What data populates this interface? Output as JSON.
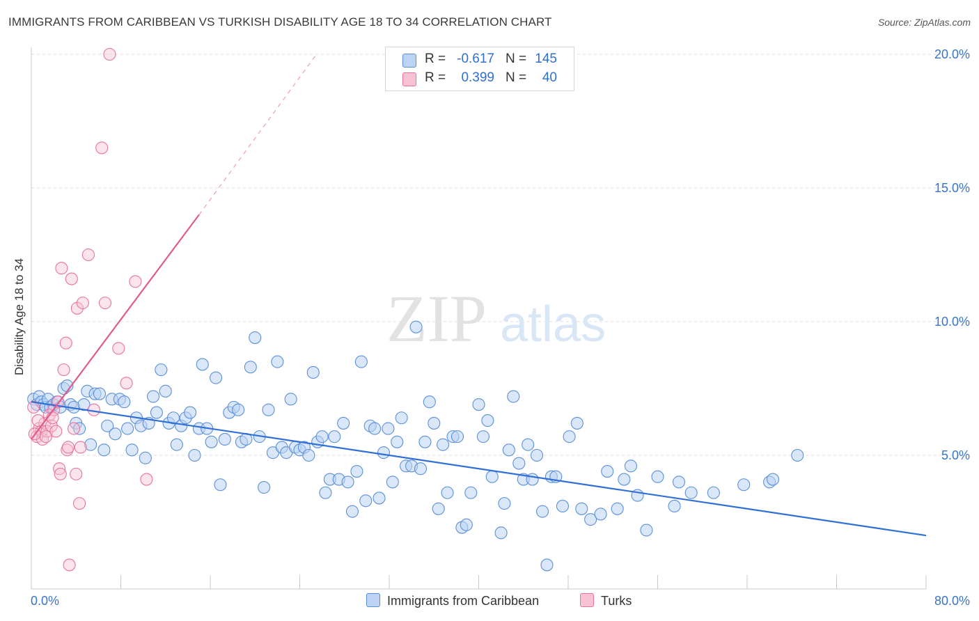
{
  "title": "IMMIGRANTS FROM CARIBBEAN VS TURKISH DISABILITY AGE 18 TO 34 CORRELATION CHART",
  "source": "Source: ZipAtlas.com",
  "watermark": "ZIPatlas",
  "colors": {
    "blue": "#5b8fd9",
    "blue_fill": "#bcd3f3",
    "blue_line": "#2f6fd6",
    "pink": "#e7749a",
    "pink_fill": "#f7c3d4",
    "pink_line": "#e05a8a",
    "axis_label": "#3b73c8",
    "grid": "#dedede"
  },
  "legend": {
    "rows": [
      {
        "r_label": "R =",
        "r_value": "-0.617",
        "n_label": "N =",
        "n_value": "145"
      },
      {
        "r_label": "R =",
        "r_value": "0.399",
        "n_label": "N =",
        "n_value": "40"
      }
    ]
  },
  "bottom_legend": {
    "blue": "Immigrants from Caribbean",
    "pink": "Turks"
  },
  "chart_data": {
    "type": "scatter",
    "xlabel": "",
    "ylabel": "Disability Age 18 to 34",
    "xlim": [
      0,
      80
    ],
    "ylim": [
      0,
      20
    ],
    "x_tick_labels": [
      "0.0%",
      "80.0%"
    ],
    "y_ticks": [
      5,
      10,
      15,
      20
    ],
    "y_tick_labels": [
      "5.0%",
      "10.0%",
      "15.0%",
      "20.0%"
    ],
    "grid": true,
    "legend_position": "top-center",
    "series": [
      {
        "name": "Immigrants from Caribbean",
        "color": "#5b8fd9",
        "trend": {
          "x": [
            0,
            80
          ],
          "y": [
            7.0,
            2.0
          ],
          "style": "solid"
        },
        "points": [
          [
            0.2,
            7.1
          ],
          [
            0.5,
            6.9
          ],
          [
            0.7,
            7.2
          ],
          [
            0.9,
            7.0
          ],
          [
            1.1,
            6.9
          ],
          [
            1.3,
            6.8
          ],
          [
            1.5,
            7.1
          ],
          [
            1.7,
            6.8
          ],
          [
            2.0,
            6.9
          ],
          [
            2.3,
            7.0
          ],
          [
            2.6,
            6.8
          ],
          [
            2.9,
            7.5
          ],
          [
            3.2,
            7.6
          ],
          [
            3.5,
            6.9
          ],
          [
            3.8,
            6.8
          ],
          [
            4.0,
            6.2
          ],
          [
            4.3,
            6.0
          ],
          [
            4.7,
            6.9
          ],
          [
            5.0,
            7.4
          ],
          [
            5.3,
            5.4
          ],
          [
            5.7,
            7.3
          ],
          [
            6.1,
            7.3
          ],
          [
            6.5,
            5.2
          ],
          [
            6.8,
            6.1
          ],
          [
            7.2,
            7.1
          ],
          [
            7.5,
            5.8
          ],
          [
            7.9,
            7.1
          ],
          [
            8.3,
            7.0
          ],
          [
            8.6,
            6.0
          ],
          [
            9.0,
            5.2
          ],
          [
            9.4,
            6.4
          ],
          [
            9.8,
            6.1
          ],
          [
            10.2,
            4.9
          ],
          [
            10.5,
            6.2
          ],
          [
            10.9,
            7.2
          ],
          [
            11.2,
            6.6
          ],
          [
            11.6,
            8.2
          ],
          [
            12.0,
            7.4
          ],
          [
            12.3,
            6.2
          ],
          [
            12.7,
            6.4
          ],
          [
            13.0,
            5.4
          ],
          [
            13.4,
            6.1
          ],
          [
            13.8,
            6.4
          ],
          [
            14.2,
            6.6
          ],
          [
            14.6,
            5.0
          ],
          [
            15.0,
            6.0
          ],
          [
            15.3,
            8.4
          ],
          [
            15.7,
            6.0
          ],
          [
            16.1,
            5.5
          ],
          [
            16.5,
            7.9
          ],
          [
            16.9,
            3.9
          ],
          [
            17.3,
            5.6
          ],
          [
            17.7,
            6.6
          ],
          [
            18.1,
            6.8
          ],
          [
            18.5,
            6.7
          ],
          [
            18.8,
            5.5
          ],
          [
            19.2,
            5.6
          ],
          [
            19.6,
            8.3
          ],
          [
            20.0,
            9.4
          ],
          [
            20.4,
            5.7
          ],
          [
            20.8,
            3.8
          ],
          [
            21.2,
            6.7
          ],
          [
            21.6,
            5.1
          ],
          [
            22.0,
            8.5
          ],
          [
            22.4,
            5.3
          ],
          [
            22.8,
            5.1
          ],
          [
            23.2,
            7.1
          ],
          [
            23.6,
            5.3
          ],
          [
            24.0,
            5.2
          ],
          [
            24.4,
            5.3
          ],
          [
            24.8,
            5.0
          ],
          [
            25.2,
            8.1
          ],
          [
            25.6,
            5.5
          ],
          [
            26.0,
            5.7
          ],
          [
            26.3,
            3.6
          ],
          [
            26.7,
            4.1
          ],
          [
            27.1,
            5.7
          ],
          [
            27.5,
            4.1
          ],
          [
            27.9,
            6.2
          ],
          [
            28.3,
            4.0
          ],
          [
            28.7,
            2.9
          ],
          [
            29.1,
            4.4
          ],
          [
            29.5,
            8.5
          ],
          [
            29.9,
            3.3
          ],
          [
            30.3,
            6.1
          ],
          [
            30.7,
            6.0
          ],
          [
            31.1,
            3.4
          ],
          [
            31.5,
            5.1
          ],
          [
            31.9,
            6.0
          ],
          [
            32.3,
            4.0
          ],
          [
            32.7,
            5.5
          ],
          [
            33.1,
            6.4
          ],
          [
            33.5,
            4.6
          ],
          [
            34.0,
            4.6
          ],
          [
            34.4,
            9.8
          ],
          [
            34.8,
            4.5
          ],
          [
            35.2,
            5.5
          ],
          [
            35.6,
            7.0
          ],
          [
            36.0,
            6.2
          ],
          [
            36.4,
            3.0
          ],
          [
            36.8,
            5.4
          ],
          [
            37.2,
            3.6
          ],
          [
            37.7,
            5.7
          ],
          [
            38.1,
            5.7
          ],
          [
            38.5,
            2.3
          ],
          [
            38.9,
            2.4
          ],
          [
            39.3,
            3.6
          ],
          [
            40.0,
            6.9
          ],
          [
            40.4,
            5.7
          ],
          [
            40.8,
            6.3
          ],
          [
            41.2,
            4.2
          ],
          [
            42.0,
            2.1
          ],
          [
            42.3,
            3.2
          ],
          [
            42.7,
            5.2
          ],
          [
            43.1,
            7.2
          ],
          [
            43.6,
            4.7
          ],
          [
            44.0,
            4.1
          ],
          [
            44.4,
            5.4
          ],
          [
            44.8,
            4.1
          ],
          [
            45.2,
            5.0
          ],
          [
            45.7,
            2.9
          ],
          [
            46.1,
            0.9
          ],
          [
            46.5,
            4.2
          ],
          [
            46.9,
            4.2
          ],
          [
            47.5,
            3.1
          ],
          [
            48.1,
            5.7
          ],
          [
            48.8,
            6.2
          ],
          [
            49.2,
            3.0
          ],
          [
            50.0,
            2.6
          ],
          [
            50.9,
            2.8
          ],
          [
            51.5,
            4.4
          ],
          [
            52.4,
            3.0
          ],
          [
            53.0,
            4.1
          ],
          [
            53.6,
            4.6
          ],
          [
            54.2,
            3.5
          ],
          [
            55.0,
            2.2
          ],
          [
            56.0,
            4.2
          ],
          [
            57.5,
            3.1
          ],
          [
            57.9,
            4.0
          ],
          [
            59.0,
            3.6
          ],
          [
            61.0,
            3.6
          ],
          [
            63.7,
            3.9
          ],
          [
            66.0,
            4.0
          ],
          [
            66.3,
            4.1
          ],
          [
            68.5,
            5.0
          ]
        ]
      },
      {
        "name": "Turks",
        "color": "#e7749a",
        "trend": {
          "x": [
            0,
            15
          ],
          "y": [
            5.6,
            14.0
          ],
          "style": "solid",
          "extends_dashed_to": [
            25.5,
            20.0
          ]
        },
        "points": [
          [
            0.2,
            6.8
          ],
          [
            0.5,
            5.7
          ],
          [
            0.7,
            6.0
          ],
          [
            0.9,
            5.9
          ],
          [
            1.0,
            5.6
          ],
          [
            1.2,
            6.2
          ],
          [
            1.4,
            5.9
          ],
          [
            1.6,
            6.5
          ],
          [
            1.8,
            6.1
          ],
          [
            2.0,
            6.7
          ],
          [
            2.2,
            5.9
          ],
          [
            2.4,
            7.0
          ],
          [
            2.5,
            4.5
          ],
          [
            2.6,
            4.3
          ],
          [
            2.7,
            12.0
          ],
          [
            2.9,
            8.2
          ],
          [
            3.1,
            9.2
          ],
          [
            3.2,
            5.2
          ],
          [
            3.4,
            0.9
          ],
          [
            3.6,
            11.6
          ],
          [
            3.8,
            6.0
          ],
          [
            4.0,
            4.3
          ],
          [
            4.1,
            10.5
          ],
          [
            4.3,
            3.2
          ],
          [
            4.4,
            5.3
          ],
          [
            4.6,
            10.7
          ],
          [
            5.1,
            12.5
          ],
          [
            5.6,
            6.7
          ],
          [
            6.3,
            16.5
          ],
          [
            6.6,
            10.7
          ],
          [
            7.0,
            20.0
          ],
          [
            7.8,
            9.0
          ],
          [
            8.5,
            7.7
          ],
          [
            9.3,
            11.5
          ],
          [
            10.3,
            4.1
          ],
          [
            0.3,
            5.8
          ],
          [
            0.6,
            6.3
          ],
          [
            1.3,
            5.7
          ],
          [
            1.9,
            6.4
          ],
          [
            3.3,
            5.3
          ]
        ]
      }
    ]
  }
}
